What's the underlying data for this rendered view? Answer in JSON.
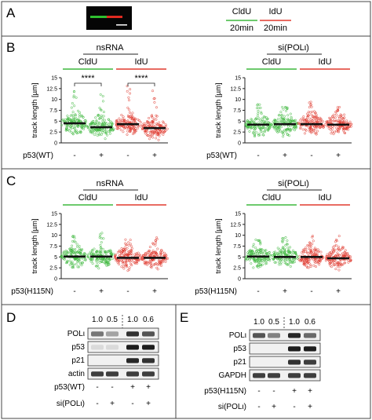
{
  "panels": {
    "A": {
      "letter": "A",
      "legend": [
        {
          "label": "CldU",
          "time": "20min",
          "color": "#3db83d"
        },
        {
          "label": "IdU",
          "time": "20min",
          "color": "#e03a2f"
        }
      ]
    },
    "B": {
      "letter": "B",
      "left": {
        "group_title": "nsRNA",
        "sig1": "****",
        "sig2": "****"
      },
      "right": {
        "group_title": "si(POLι)"
      }
    },
    "C": {
      "letter": "C",
      "left": {
        "group_title": "nsRNA"
      },
      "right": {
        "group_title": "si(POLι)"
      }
    },
    "D": {
      "letter": "D",
      "quant": [
        "1.0",
        "0.5",
        "1.0",
        "0.6"
      ],
      "blot_labels": [
        "POLι",
        "p53",
        "p21",
        "actin"
      ],
      "cond1_label": "p53(WT)",
      "cond2_label": "si(POLι)",
      "cond1": [
        "-",
        "-",
        "+",
        "+"
      ],
      "cond2": [
        "-",
        "+",
        "-",
        "+"
      ]
    },
    "E": {
      "letter": "E",
      "quant": [
        "1.0",
        "0.5",
        "1.0",
        "0.6"
      ],
      "blot_labels": [
        "POLι",
        "p53",
        "p21",
        "GAPDH"
      ],
      "cond1_label": "p53(H115N)",
      "cond2_label": "si(POLι)",
      "cond1": [
        "-",
        "-",
        "+",
        "+"
      ],
      "cond2": [
        "-",
        "+",
        "-",
        "+"
      ]
    }
  },
  "chart_data": [
    {
      "type": "scatter",
      "panel": "B-left",
      "ylabel": "track length [µm]",
      "ylim": [
        0,
        15
      ],
      "yticks": [
        "0",
        "2.5",
        "5",
        "7.5",
        "10",
        "12.5",
        "15"
      ],
      "channel_labels": [
        "CldU",
        "IdU"
      ],
      "xrow_label": "p53(WT)",
      "xticks": [
        "-",
        "+",
        "-",
        "+"
      ],
      "medians": [
        4.5,
        3.6,
        4.3,
        3.4
      ],
      "max_values": [
        12.0,
        11.5,
        13.5,
        12.0
      ]
    },
    {
      "type": "scatter",
      "panel": "B-right",
      "ylabel": "track length [µm]",
      "ylim": [
        0,
        15
      ],
      "yticks": [
        "0",
        "2.5",
        "5",
        "7.5",
        "10",
        "12.5",
        "15"
      ],
      "channel_labels": [
        "CldU",
        "IdU"
      ],
      "xrow_label": "p53(WT)",
      "xticks": [
        "-",
        "+",
        "-",
        "+"
      ],
      "medians": [
        4.2,
        4.3,
        4.3,
        4.2
      ],
      "max_values": [
        9.0,
        9.0,
        10.5,
        8.5
      ]
    },
    {
      "type": "scatter",
      "panel": "C-left",
      "ylabel": "track length [µm]",
      "ylim": [
        0,
        15
      ],
      "yticks": [
        "0",
        "2.5",
        "5",
        "7.5",
        "10",
        "12.5",
        "15"
      ],
      "channel_labels": [
        "CldU",
        "IdU"
      ],
      "xrow_label": "p53(H115N)",
      "xticks": [
        "-",
        "+",
        "-",
        "+"
      ],
      "medians": [
        5.1,
        5.1,
        4.8,
        4.8
      ],
      "max_values": [
        10.0,
        10.5,
        9.0,
        9.5
      ]
    },
    {
      "type": "scatter",
      "panel": "C-right",
      "ylabel": "track length [µm]",
      "ylim": [
        0,
        15
      ],
      "yticks": [
        "0",
        "2.5",
        "5",
        "7.5",
        "10",
        "12.5",
        "15"
      ],
      "channel_labels": [
        "CldU",
        "IdU"
      ],
      "xrow_label": "p53(H115N)",
      "xticks": [
        "-",
        "+",
        "-",
        "+"
      ],
      "medians": [
        5.1,
        5.0,
        5.0,
        4.7
      ],
      "max_values": [
        9.0,
        9.5,
        10.0,
        10.0
      ]
    }
  ]
}
